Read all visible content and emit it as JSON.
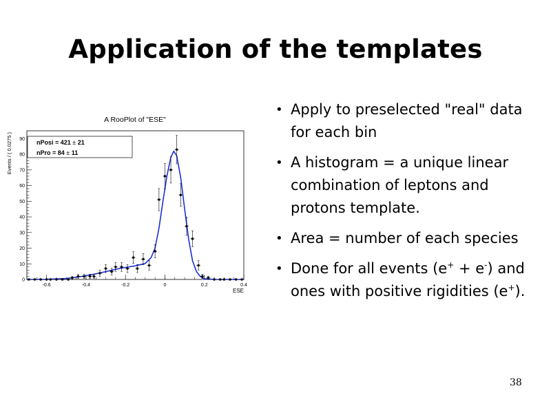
{
  "slide": {
    "title": "Application of the templates",
    "page_number": "38"
  },
  "bullets": [
    {
      "text": "Apply to preselected \"real\" data for each bin"
    },
    {
      "text": "A histogram = a unique linear combination of leptons and protons template."
    },
    {
      "text": "Area = number of each species"
    },
    {
      "text_pre": "Done for all events (e",
      "sup1": "+",
      "text_mid": " + e",
      "sup2": "-",
      "text_mid2": ") and ones with positive rigidities (e",
      "sup3": "+",
      "text_post": ")."
    }
  ],
  "chart_data": {
    "type": "scatter",
    "title": "A RooPlot of \"ESE\"",
    "xlabel": "ESE",
    "ylabel": "Events / ( 0.0275 )",
    "xlim": [
      -0.7,
      0.4
    ],
    "ylim": [
      0,
      95
    ],
    "xticks": [
      -0.6,
      -0.4,
      -0.2,
      0,
      0.2,
      0.4
    ],
    "xtick_labels": [
      "-0.6",
      "-0.4",
      "-0.2",
      "0",
      "0.2",
      "0.4"
    ],
    "yticks": [
      0,
      10,
      20,
      30,
      40,
      50,
      60,
      70,
      80,
      90
    ],
    "ytick_labels": [
      "0",
      "10",
      "20",
      "30",
      "40",
      "50",
      "60",
      "70",
      "80",
      "90"
    ],
    "grid": false,
    "stats_box": [
      {
        "label": "nPosi = 421",
        "pm": "±",
        "err": "21"
      },
      {
        "label": "nPro = 84",
        "pm": "±",
        "err": "11"
      }
    ],
    "series": [
      {
        "kind": "points",
        "color": "#000000",
        "points": [
          {
            "x": -0.69,
            "y": 0,
            "err": 0
          },
          {
            "x": -0.66,
            "y": 0,
            "err": 0
          },
          {
            "x": -0.63,
            "y": 0,
            "err": 0
          },
          {
            "x": -0.6,
            "y": 0,
            "err": 0
          },
          {
            "x": -0.58,
            "y": 0,
            "err": 0
          },
          {
            "x": -0.55,
            "y": 0,
            "err": 0
          },
          {
            "x": -0.52,
            "y": 0,
            "err": 0
          },
          {
            "x": -0.49,
            "y": 0,
            "err": 0
          },
          {
            "x": -0.47,
            "y": 1,
            "err": 1
          },
          {
            "x": -0.44,
            "y": 2,
            "err": 1.4
          },
          {
            "x": -0.41,
            "y": 2,
            "err": 1.4
          },
          {
            "x": -0.38,
            "y": 2,
            "err": 1.4
          },
          {
            "x": -0.36,
            "y": 2,
            "err": 1.4
          },
          {
            "x": -0.33,
            "y": 4,
            "err": 2
          },
          {
            "x": -0.3,
            "y": 7,
            "err": 2.6
          },
          {
            "x": -0.27,
            "y": 5,
            "err": 2.2
          },
          {
            "x": -0.25,
            "y": 8,
            "err": 2.8
          },
          {
            "x": -0.22,
            "y": 8,
            "err": 2.8
          },
          {
            "x": -0.19,
            "y": 7,
            "err": 2.6
          },
          {
            "x": -0.16,
            "y": 14,
            "err": 3.7
          },
          {
            "x": -0.14,
            "y": 7,
            "err": 2.6
          },
          {
            "x": -0.11,
            "y": 13,
            "err": 3.6
          },
          {
            "x": -0.08,
            "y": 9,
            "err": 3
          },
          {
            "x": -0.05,
            "y": 18,
            "err": 4.2
          },
          {
            "x": -0.03,
            "y": 51,
            "err": 7.1
          },
          {
            "x": 0.0,
            "y": 66,
            "err": 8.1
          },
          {
            "x": 0.03,
            "y": 70,
            "err": 8.4
          },
          {
            "x": 0.06,
            "y": 83,
            "err": 9.1
          },
          {
            "x": 0.08,
            "y": 54,
            "err": 7.3
          },
          {
            "x": 0.11,
            "y": 34,
            "err": 5.8
          },
          {
            "x": 0.14,
            "y": 26,
            "err": 5.1
          },
          {
            "x": 0.17,
            "y": 9,
            "err": 3
          },
          {
            "x": 0.19,
            "y": 2,
            "err": 1.4
          },
          {
            "x": 0.22,
            "y": 1,
            "err": 1
          },
          {
            "x": 0.25,
            "y": 0,
            "err": 0
          },
          {
            "x": 0.28,
            "y": 0,
            "err": 0
          },
          {
            "x": 0.3,
            "y": 0,
            "err": 0
          },
          {
            "x": 0.33,
            "y": 0,
            "err": 0
          },
          {
            "x": 0.36,
            "y": 0,
            "err": 0
          },
          {
            "x": 0.39,
            "y": 0,
            "err": 0
          }
        ]
      },
      {
        "kind": "fit_curve",
        "color": "#1a2fd6",
        "points": [
          [
            -0.7,
            0.0
          ],
          [
            -0.6,
            0.1
          ],
          [
            -0.5,
            0.6
          ],
          [
            -0.45,
            1.4
          ],
          [
            -0.4,
            2.4
          ],
          [
            -0.35,
            3.6
          ],
          [
            -0.3,
            5.0
          ],
          [
            -0.25,
            6.5
          ],
          [
            -0.2,
            7.7
          ],
          [
            -0.15,
            8.7
          ],
          [
            -0.1,
            10.2
          ],
          [
            -0.07,
            14.0
          ],
          [
            -0.05,
            20.0
          ],
          [
            -0.03,
            33.0
          ],
          [
            -0.01,
            50.0
          ],
          [
            0.01,
            66.0
          ],
          [
            0.03,
            78.0
          ],
          [
            0.045,
            82.0
          ],
          [
            0.06,
            79.0
          ],
          [
            0.08,
            65.0
          ],
          [
            0.1,
            45.0
          ],
          [
            0.12,
            26.0
          ],
          [
            0.14,
            12.0
          ],
          [
            0.16,
            5.0
          ],
          [
            0.18,
            1.8
          ],
          [
            0.2,
            0.5
          ],
          [
            0.25,
            0.05
          ],
          [
            0.4,
            0.0
          ]
        ]
      }
    ]
  }
}
